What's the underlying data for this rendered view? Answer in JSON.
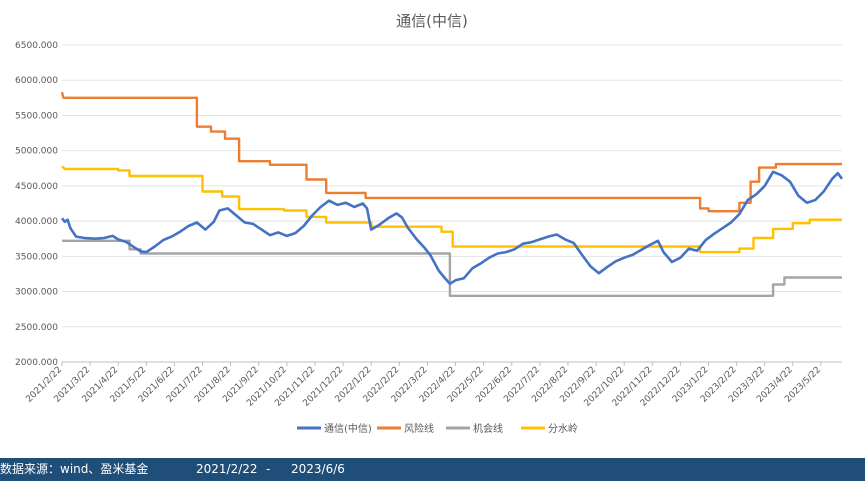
{
  "chart_data": {
    "type": "line",
    "title": "通信(中信)",
    "xlabel": "",
    "ylabel": "",
    "ylim": [
      2000,
      6500
    ],
    "yticks": [
      2000,
      2500,
      3000,
      3500,
      4000,
      4500,
      5000,
      5500,
      6000,
      6500
    ],
    "ytick_labels": [
      "2000.000",
      "2500.000",
      "3000.000",
      "3500.000",
      "4000.000",
      "4500.000",
      "5000.000",
      "5500.000",
      "6000.000",
      "6500.000"
    ],
    "x_categories": [
      "2021/2/22",
      "2021/3/22",
      "2021/4/22",
      "2021/5/22",
      "2021/6/22",
      "2021/7/22",
      "2021/8/22",
      "2021/9/22",
      "2021/10/22",
      "2021/11/22",
      "2021/12/22",
      "2022/1/22",
      "2022/2/22",
      "2022/3/22",
      "2022/4/22",
      "2022/5/22",
      "2022/6/22",
      "2022/7/22",
      "2022/8/22",
      "2022/9/22",
      "2022/10/22",
      "2022/11/22",
      "2022/12/22",
      "2023/1/22",
      "2023/2/22",
      "2023/3/22",
      "2023/4/22",
      "2023/5/22"
    ],
    "grid": true,
    "legend_position": "bottom",
    "series": [
      {
        "name": "通信(中信)",
        "color": "#4472c4",
        "points": [
          [
            0,
            4040
          ],
          [
            0.1,
            3990
          ],
          [
            0.2,
            4020
          ],
          [
            0.3,
            3900
          ],
          [
            0.5,
            3780
          ],
          [
            0.8,
            3760
          ],
          [
            1.2,
            3750
          ],
          [
            1.5,
            3760
          ],
          [
            1.8,
            3790
          ],
          [
            2.0,
            3740
          ],
          [
            2.3,
            3700
          ],
          [
            2.6,
            3620
          ],
          [
            2.8,
            3570
          ],
          [
            3.0,
            3560
          ],
          [
            3.3,
            3640
          ],
          [
            3.6,
            3730
          ],
          [
            3.9,
            3780
          ],
          [
            4.2,
            3850
          ],
          [
            4.5,
            3930
          ],
          [
            4.8,
            3980
          ],
          [
            5.1,
            3880
          ],
          [
            5.4,
            3990
          ],
          [
            5.6,
            4150
          ],
          [
            5.9,
            4180
          ],
          [
            6.2,
            4080
          ],
          [
            6.5,
            3980
          ],
          [
            6.8,
            3960
          ],
          [
            7.1,
            3880
          ],
          [
            7.4,
            3800
          ],
          [
            7.7,
            3840
          ],
          [
            8.0,
            3790
          ],
          [
            8.3,
            3830
          ],
          [
            8.6,
            3930
          ],
          [
            8.9,
            4080
          ],
          [
            9.2,
            4200
          ],
          [
            9.5,
            4290
          ],
          [
            9.8,
            4230
          ],
          [
            10.1,
            4260
          ],
          [
            10.4,
            4200
          ],
          [
            10.7,
            4250
          ],
          [
            10.85,
            4180
          ],
          [
            11.0,
            3880
          ],
          [
            11.3,
            3950
          ],
          [
            11.6,
            4040
          ],
          [
            11.9,
            4110
          ],
          [
            12.1,
            4050
          ],
          [
            12.3,
            3910
          ],
          [
            12.6,
            3750
          ],
          [
            12.9,
            3620
          ],
          [
            13.1,
            3520
          ],
          [
            13.4,
            3300
          ],
          [
            13.6,
            3200
          ],
          [
            13.8,
            3110
          ],
          [
            14.0,
            3160
          ],
          [
            14.3,
            3190
          ],
          [
            14.6,
            3330
          ],
          [
            14.9,
            3400
          ],
          [
            15.2,
            3480
          ],
          [
            15.5,
            3540
          ],
          [
            15.8,
            3560
          ],
          [
            16.1,
            3600
          ],
          [
            16.4,
            3680
          ],
          [
            16.7,
            3700
          ],
          [
            17.0,
            3740
          ],
          [
            17.3,
            3780
          ],
          [
            17.6,
            3810
          ],
          [
            17.9,
            3740
          ],
          [
            18.2,
            3690
          ],
          [
            18.5,
            3520
          ],
          [
            18.8,
            3360
          ],
          [
            19.1,
            3260
          ],
          [
            19.4,
            3350
          ],
          [
            19.7,
            3430
          ],
          [
            20.0,
            3480
          ],
          [
            20.3,
            3520
          ],
          [
            20.6,
            3590
          ],
          [
            20.9,
            3660
          ],
          [
            21.2,
            3720
          ],
          [
            21.4,
            3560
          ],
          [
            21.7,
            3420
          ],
          [
            22.0,
            3480
          ],
          [
            22.3,
            3610
          ],
          [
            22.6,
            3580
          ],
          [
            22.9,
            3730
          ],
          [
            23.2,
            3820
          ],
          [
            23.5,
            3900
          ],
          [
            23.8,
            3980
          ],
          [
            24.1,
            4100
          ],
          [
            24.4,
            4300
          ],
          [
            24.7,
            4380
          ],
          [
            25.0,
            4500
          ],
          [
            25.3,
            4700
          ],
          [
            25.6,
            4650
          ],
          [
            25.9,
            4560
          ],
          [
            26.2,
            4360
          ],
          [
            26.5,
            4260
          ],
          [
            26.8,
            4300
          ],
          [
            27.1,
            4420
          ],
          [
            27.4,
            4600
          ],
          [
            27.6,
            4680
          ],
          [
            27.75,
            4600
          ]
        ]
      },
      {
        "name": "风险线",
        "color": "#ed7d31",
        "points": [
          [
            0,
            5830
          ],
          [
            0.05,
            5750
          ],
          [
            4.8,
            5750
          ],
          [
            4.8,
            5340
          ],
          [
            5.3,
            5340
          ],
          [
            5.3,
            5270
          ],
          [
            5.8,
            5270
          ],
          [
            5.8,
            5170
          ],
          [
            6.3,
            5170
          ],
          [
            6.3,
            4850
          ],
          [
            7.4,
            4850
          ],
          [
            7.4,
            4800
          ],
          [
            8.7,
            4800
          ],
          [
            8.7,
            4590
          ],
          [
            9.4,
            4590
          ],
          [
            9.4,
            4400
          ],
          [
            10.8,
            4400
          ],
          [
            10.8,
            4330
          ],
          [
            22.7,
            4330
          ],
          [
            22.7,
            4180
          ],
          [
            23.0,
            4180
          ],
          [
            23.0,
            4140
          ],
          [
            24.1,
            4140
          ],
          [
            24.1,
            4260
          ],
          [
            24.5,
            4260
          ],
          [
            24.5,
            4560
          ],
          [
            24.8,
            4560
          ],
          [
            24.8,
            4760
          ],
          [
            25.4,
            4760
          ],
          [
            25.4,
            4810
          ],
          [
            27.75,
            4810
          ]
        ]
      },
      {
        "name": "机会线",
        "color": "#a5a5a5",
        "points": [
          [
            0,
            3720
          ],
          [
            2.4,
            3720
          ],
          [
            2.4,
            3600
          ],
          [
            2.8,
            3600
          ],
          [
            2.8,
            3540
          ],
          [
            13.8,
            3540
          ],
          [
            13.8,
            2940
          ],
          [
            25.3,
            2940
          ],
          [
            25.3,
            3100
          ],
          [
            25.7,
            3100
          ],
          [
            25.7,
            3200
          ],
          [
            27.75,
            3200
          ]
        ]
      },
      {
        "name": "分水岭",
        "color": "#ffc000",
        "points": [
          [
            0,
            4780
          ],
          [
            0.1,
            4740
          ],
          [
            2.0,
            4740
          ],
          [
            2.0,
            4720
          ],
          [
            2.4,
            4720
          ],
          [
            2.4,
            4640
          ],
          [
            5.0,
            4640
          ],
          [
            5.0,
            4420
          ],
          [
            5.7,
            4420
          ],
          [
            5.7,
            4350
          ],
          [
            6.3,
            4350
          ],
          [
            6.3,
            4170
          ],
          [
            7.9,
            4170
          ],
          [
            7.9,
            4150
          ],
          [
            8.7,
            4150
          ],
          [
            8.7,
            4060
          ],
          [
            9.4,
            4060
          ],
          [
            9.4,
            3980
          ],
          [
            11.0,
            3980
          ],
          [
            11.0,
            3920
          ],
          [
            13.5,
            3920
          ],
          [
            13.5,
            3850
          ],
          [
            13.9,
            3850
          ],
          [
            13.9,
            3640
          ],
          [
            22.7,
            3640
          ],
          [
            22.7,
            3560
          ],
          [
            24.1,
            3560
          ],
          [
            24.1,
            3610
          ],
          [
            24.6,
            3610
          ],
          [
            24.6,
            3760
          ],
          [
            25.3,
            3760
          ],
          [
            25.3,
            3890
          ],
          [
            26.0,
            3890
          ],
          [
            26.0,
            3970
          ],
          [
            26.6,
            3970
          ],
          [
            26.6,
            4020
          ],
          [
            27.75,
            4020
          ]
        ]
      }
    ]
  },
  "footer": {
    "source": "数据来源：wind、盈米基金",
    "start_date": "2021/2/22",
    "separator": "-",
    "end_date": "2023/6/6"
  }
}
